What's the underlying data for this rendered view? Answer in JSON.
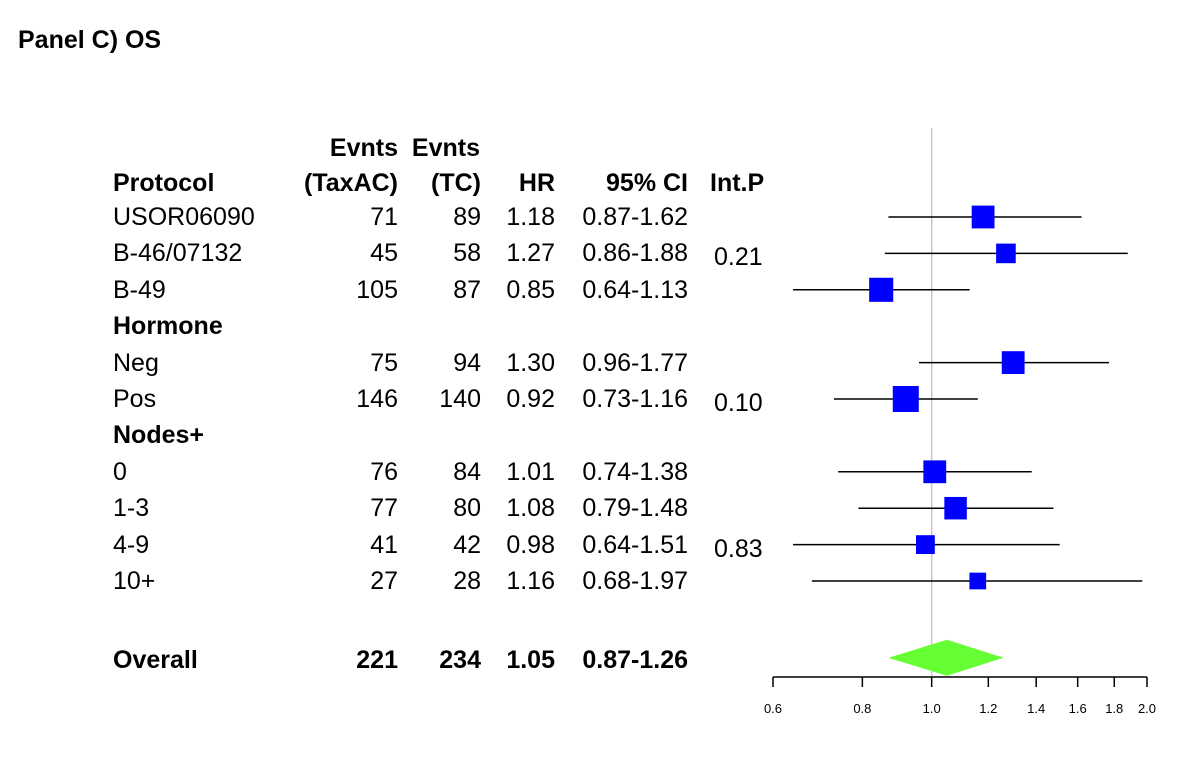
{
  "title": "Panel C) OS",
  "colors": {
    "square": "#0000ff",
    "diamond": "#66ff33",
    "ref_line": "#c8c8c8",
    "ci_line": "#000000"
  },
  "chart_data": {
    "type": "forest",
    "title": "Panel C) OS",
    "x_scale": "log",
    "xlim": [
      0.6,
      2.0
    ],
    "x_ticks": [
      "0.6",
      "0.8",
      "1.0",
      "1.2",
      "1.4",
      "1.6",
      "1.8",
      "2.0"
    ],
    "reference_value": 1.0,
    "headers": {
      "col1_top": "",
      "col1": "Protocol",
      "col2_top": "Evnts",
      "col2": "(TaxAC)",
      "col3_top": "Evnts",
      "col3": "(TC)",
      "col4": "HR",
      "col5": "95% CI",
      "col6": "Int.P"
    },
    "rows": [
      {
        "kind": "study",
        "label": "USOR06090",
        "ev_taxac": "71",
        "ev_tc": "89",
        "hr": 1.18,
        "hr_text": "1.18",
        "ci_lo": 0.87,
        "ci_hi": 1.62,
        "ci_text": "0.87-1.62",
        "p": "",
        "weight": 0.8
      },
      {
        "kind": "study",
        "label": "B-46/07132",
        "ev_taxac": "45",
        "ev_tc": "58",
        "hr": 1.27,
        "hr_text": "1.27",
        "ci_lo": 0.86,
        "ci_hi": 1.88,
        "ci_text": "0.86-1.88",
        "p": "0.21",
        "weight": 0.6
      },
      {
        "kind": "study",
        "label": "B-49",
        "ev_taxac": "105",
        "ev_tc": "87",
        "hr": 0.85,
        "hr_text": "0.85",
        "ci_lo": 0.64,
        "ci_hi": 1.13,
        "ci_text": "0.64-1.13",
        "p": "",
        "weight": 0.88
      },
      {
        "kind": "group",
        "label": "Hormone"
      },
      {
        "kind": "study",
        "label": "Neg",
        "ev_taxac": "75",
        "ev_tc": "94",
        "hr": 1.3,
        "hr_text": "1.30",
        "ci_lo": 0.96,
        "ci_hi": 1.77,
        "ci_text": "0.96-1.77",
        "p": "",
        "weight": 0.8
      },
      {
        "kind": "study",
        "label": "Pos",
        "ev_taxac": "146",
        "ev_tc": "140",
        "hr": 0.92,
        "hr_text": "0.92",
        "ci_lo": 0.73,
        "ci_hi": 1.16,
        "ci_text": "0.73-1.16",
        "p": "0.10",
        "weight": 1.0
      },
      {
        "kind": "group",
        "label": "Nodes+"
      },
      {
        "kind": "study",
        "label": "0",
        "ev_taxac": "76",
        "ev_tc": "84",
        "hr": 1.01,
        "hr_text": "1.01",
        "ci_lo": 0.74,
        "ci_hi": 1.38,
        "ci_text": "0.74-1.38",
        "p": "",
        "weight": 0.8
      },
      {
        "kind": "study",
        "label": "1-3",
        "ev_taxac": "77",
        "ev_tc": "80",
        "hr": 1.08,
        "hr_text": "1.08",
        "ci_lo": 0.79,
        "ci_hi": 1.48,
        "ci_text": "0.79-1.48",
        "p": "",
        "weight": 0.78
      },
      {
        "kind": "study",
        "label": "4-9",
        "ev_taxac": "41",
        "ev_tc": "42",
        "hr": 0.98,
        "hr_text": "0.98",
        "ci_lo": 0.64,
        "ci_hi": 1.51,
        "ci_text": "0.64-1.51",
        "p": "0.83",
        "weight": 0.55
      },
      {
        "kind": "study",
        "label": "10+",
        "ev_taxac": "27",
        "ev_tc": "28",
        "hr": 1.16,
        "hr_text": "1.16",
        "ci_lo": 0.68,
        "ci_hi": 1.97,
        "ci_text": "0.68-1.97",
        "p": "",
        "weight": 0.42
      },
      {
        "kind": "spacer"
      },
      {
        "kind": "overall",
        "label": "Overall",
        "ev_taxac": "221",
        "ev_tc": "234",
        "hr": 1.05,
        "hr_text": "1.05",
        "ci_lo": 0.87,
        "ci_hi": 1.26,
        "ci_text": "0.87-1.26",
        "p": ""
      }
    ]
  }
}
